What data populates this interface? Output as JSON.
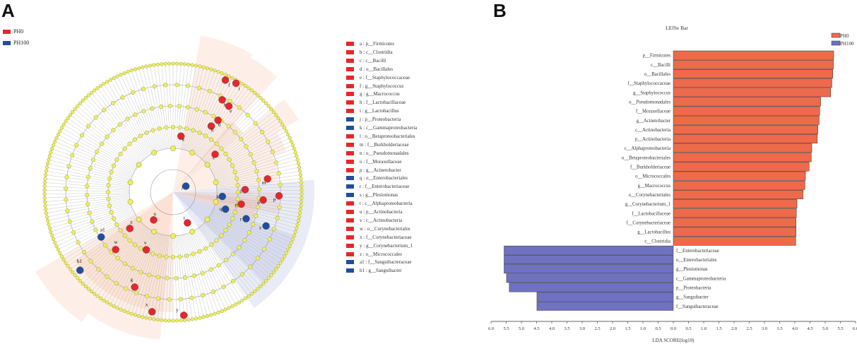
{
  "panel_a": {
    "letter": "A",
    "legend": [
      {
        "label": "PH0",
        "color": "#e8262a"
      },
      {
        "label": "PH100",
        "color": "#1f4e9e"
      }
    ],
    "clades": [
      {
        "code": "a",
        "name": "a : p__Firmicutes",
        "group": "PH0"
      },
      {
        "code": "b",
        "name": "b : c__Clostridia",
        "group": "PH0"
      },
      {
        "code": "c",
        "name": "c : c__Bacilli",
        "group": "PH0"
      },
      {
        "code": "d",
        "name": "d : o__Bacillales",
        "group": "PH0"
      },
      {
        "code": "e",
        "name": "e : f__Staphylococcaceae",
        "group": "PH0"
      },
      {
        "code": "f",
        "name": "f : g__Staphylococcus",
        "group": "PH0"
      },
      {
        "code": "g",
        "name": "g : g__Macrococcus",
        "group": "PH0"
      },
      {
        "code": "h",
        "name": "h : f__Lactobacillaceae",
        "group": "PH0"
      },
      {
        "code": "i",
        "name": "i : g__Lactobacillus",
        "group": "PH0"
      },
      {
        "code": "j",
        "name": "j : p__Proteobacteria",
        "group": "PH100"
      },
      {
        "code": "k",
        "name": "k : c__Gammaproteobacteria",
        "group": "PH100"
      },
      {
        "code": "l",
        "name": "l : o__Betaproteobacteriales",
        "group": "PH0"
      },
      {
        "code": "m",
        "name": "m : f__Burkholderiaceae",
        "group": "PH0"
      },
      {
        "code": "n",
        "name": "n : o__Pseudomonadales",
        "group": "PH0"
      },
      {
        "code": "o",
        "name": "o : f__Moraxellaceae",
        "group": "PH0"
      },
      {
        "code": "p",
        "name": "p : g__Acinetobacter",
        "group": "PH0"
      },
      {
        "code": "q",
        "name": "q : o__Enterobacteriales",
        "group": "PH100"
      },
      {
        "code": "r",
        "name": "r : f__Enterobacteriaceae",
        "group": "PH100"
      },
      {
        "code": "s",
        "name": "s : g__Plesiomonas",
        "group": "PH100"
      },
      {
        "code": "t",
        "name": "t : c__Alphaproteobacteria",
        "group": "PH0"
      },
      {
        "code": "u",
        "name": "u : p__Actinobacteria",
        "group": "PH0"
      },
      {
        "code": "v",
        "name": "v : c__Actinobacteria",
        "group": "PH0"
      },
      {
        "code": "w",
        "name": "w : o__Corynebacteriales",
        "group": "PH0"
      },
      {
        "code": "x",
        "name": "x : f__Corynebacteriaceae",
        "group": "PH0"
      },
      {
        "code": "y",
        "name": "y : g__Corynebacterium_1",
        "group": "PH0"
      },
      {
        "code": "z",
        "name": "z : o__Micrococcales",
        "group": "PH0"
      },
      {
        "code": "a1",
        "name": "a1 : f__Sanguibacteraceae",
        "group": "PH100"
      },
      {
        "code": "b1",
        "name": "b1 : g__Sanguibacter",
        "group": "PH100"
      }
    ]
  },
  "chart_data": {
    "type": "bar",
    "orientation": "horizontal",
    "panel_letter": "B",
    "title": "LEfSe Bar",
    "xlabel": "LDA SCORE(log10)",
    "xlim": [
      -6.0,
      6.0
    ],
    "xticks": [
      "6.0",
      "5.5",
      "5.0",
      "4.5",
      "4.0",
      "3.5",
      "3.0",
      "2.5",
      "2.0",
      "1.5",
      "1.0",
      "0.5",
      "0.0",
      "0.5",
      "1.0",
      "1.5",
      "2.0",
      "2.5",
      "3.0",
      "3.5",
      "4.0",
      "4.5",
      "5.0",
      "5.5",
      "6.0"
    ],
    "legend": [
      {
        "label": "PH0",
        "color": "#ee6a4a"
      },
      {
        "label": "PH100",
        "color": "#6f72c0"
      }
    ],
    "categories": [
      "p__Firmicutes",
      "c__Bacilli",
      "o__Bacillales",
      "f__Staphylococcaceae",
      "g__Staphylococcus",
      "o__Pseudomonadales",
      "f__Moraxellaceae",
      "g__Acinetobacter",
      "c__Actinobacteria",
      "p__Actinobacteria",
      "c__Alphaproteobacteria",
      "o__Betaproteobacteriales",
      "f__Burkholderiaceae",
      "o__Micrococcales",
      "g__Macrococcus",
      "o__Corynebacteriales",
      "g__Corynebacterium_1",
      "f__Lactobacillaceae",
      "f__Corynebacteriaceae",
      "g__Lactobacillus",
      "c__Clostridia",
      "f__Enterobacteriaceae",
      "o__Enterobacteriales",
      "g__Plesiomonas",
      "c__Gammaproteobacteria",
      "p__Proteobacteria",
      "g__Sanguibacter",
      "f__Sanguibacteraceae"
    ],
    "groups": [
      "PH0",
      "PH0",
      "PH0",
      "PH0",
      "PH0",
      "PH0",
      "PH0",
      "PH0",
      "PH0",
      "PH0",
      "PH0",
      "PH0",
      "PH0",
      "PH0",
      "PH0",
      "PH0",
      "PH0",
      "PH0",
      "PH0",
      "PH0",
      "PH0",
      "PH100",
      "PH100",
      "PH100",
      "PH100",
      "PH100",
      "PH100",
      "PH100"
    ],
    "values": [
      5.28,
      5.27,
      5.25,
      5.22,
      5.18,
      4.85,
      4.82,
      4.8,
      4.76,
      4.74,
      4.56,
      4.54,
      4.47,
      4.35,
      4.33,
      4.27,
      4.07,
      4.05,
      4.04,
      4.04,
      4.03,
      -5.57,
      -5.57,
      -5.57,
      -5.49,
      -5.4,
      -4.49,
      -4.49
    ]
  }
}
